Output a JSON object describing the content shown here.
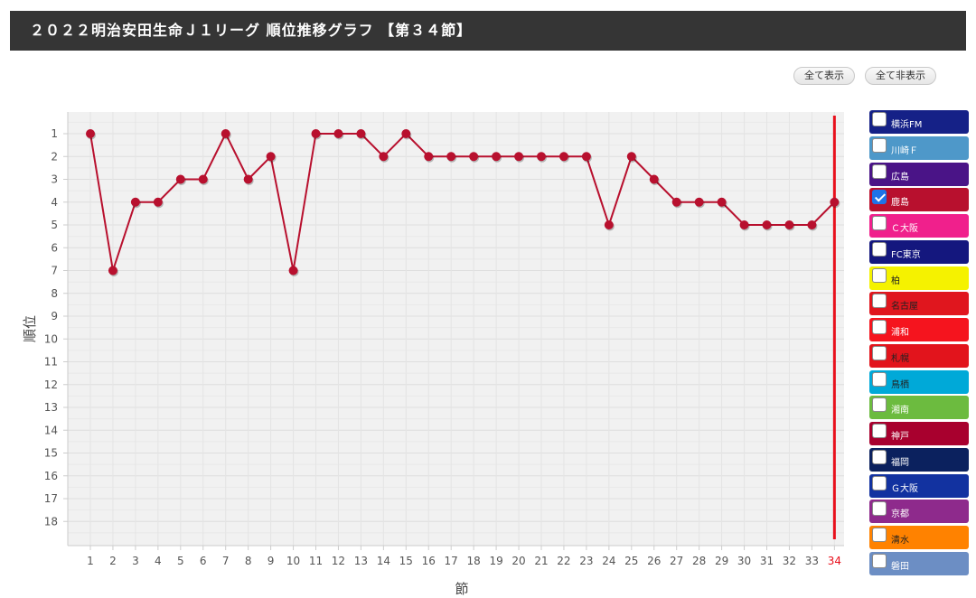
{
  "header": {
    "title": "２０２２明治安田生命Ｊ１リーグ 順位推移グラフ 【第３４節】"
  },
  "controls": {
    "show_all": "全て表示",
    "hide_all": "全て非表示"
  },
  "chart_data": {
    "type": "line",
    "title": "",
    "xlabel": "節",
    "ylabel": "順位",
    "x": [
      1,
      2,
      3,
      4,
      5,
      6,
      7,
      8,
      9,
      10,
      11,
      12,
      13,
      14,
      15,
      16,
      17,
      18,
      19,
      20,
      21,
      22,
      23,
      24,
      25,
      26,
      27,
      28,
      29,
      30,
      31,
      32,
      33,
      34
    ],
    "xlim": [
      1,
      34
    ],
    "ylim": [
      1,
      18
    ],
    "y_inverted": true,
    "yticks": [
      1,
      2,
      3,
      4,
      5,
      6,
      7,
      8,
      9,
      10,
      11,
      12,
      13,
      14,
      15,
      16,
      17,
      18
    ],
    "grid": true,
    "current_round": 34,
    "current_round_color": "#e8101c",
    "series": [
      {
        "name": "鹿島",
        "color": "#b8102e",
        "values": [
          1,
          7,
          4,
          4,
          3,
          3,
          1,
          3,
          2,
          7,
          1,
          1,
          1,
          2,
          1,
          2,
          2,
          2,
          2,
          2,
          2,
          2,
          2,
          5,
          2,
          3,
          4,
          4,
          4,
          5,
          5,
          5,
          5,
          4
        ]
      }
    ],
    "legend": "right"
  },
  "legend": {
    "items": [
      {
        "label": "横浜FM",
        "color": "#152187",
        "text_color": "#ffffff",
        "checked": false
      },
      {
        "label": "川崎Ｆ",
        "color": "#4e98c9",
        "text_color": "#ffffff",
        "checked": false
      },
      {
        "label": "広島",
        "color": "#4a1487",
        "text_color": "#ffffff",
        "checked": false
      },
      {
        "label": "鹿島",
        "color": "#b8102e",
        "text_color": "#ffffff",
        "checked": true
      },
      {
        "label": "Ｃ大阪",
        "color": "#f0208c",
        "text_color": "#ffffff",
        "checked": false
      },
      {
        "label": "FC東京",
        "color": "#14177e",
        "text_color": "#ffffff",
        "checked": false
      },
      {
        "label": "柏",
        "color": "#f5f200",
        "text_color": "#222222",
        "checked": false
      },
      {
        "label": "名古屋",
        "color": "#e0161e",
        "text_color": "#222222",
        "checked": false
      },
      {
        "label": "浦和",
        "color": "#f5141e",
        "text_color": "#ffffff",
        "checked": false
      },
      {
        "label": "札幌",
        "color": "#e2141c",
        "text_color": "#222222",
        "checked": false
      },
      {
        "label": "鳥栖",
        "color": "#00a9d8",
        "text_color": "#222222",
        "checked": false
      },
      {
        "label": "湘南",
        "color": "#6cbb3f",
        "text_color": "#ffffff",
        "checked": false
      },
      {
        "label": "神戸",
        "color": "#a8002e",
        "text_color": "#ffffff",
        "checked": false
      },
      {
        "label": "福岡",
        "color": "#0b215e",
        "text_color": "#ffffff",
        "checked": false
      },
      {
        "label": "Ｇ大阪",
        "color": "#1232a0",
        "text_color": "#ffffff",
        "checked": false
      },
      {
        "label": "京都",
        "color": "#8e2a8c",
        "text_color": "#ffffff",
        "checked": false
      },
      {
        "label": "清水",
        "color": "#ff8200",
        "text_color": "#222222",
        "checked": false
      },
      {
        "label": "磐田",
        "color": "#6c8ec4",
        "text_color": "#ffffff",
        "checked": false
      }
    ]
  }
}
